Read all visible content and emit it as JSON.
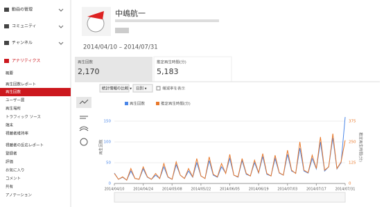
{
  "sidebar": {
    "sections": [
      "動画の管理",
      "コミュニティ",
      "チャンネル",
      "アナリティクス"
    ],
    "items": [
      "概要",
      "再生回数レポート",
      "再生回数",
      "ユーザー層",
      "再生場所",
      "トラフィック ソース",
      "端末",
      "視聴者維持率",
      "視聴者の反応レポート",
      "登録者",
      "評価",
      "お気に入り",
      "コメント",
      "共有",
      "アノテーション"
    ]
  },
  "header": {
    "channel_name": "中嶋航一",
    "date_range": "2014/04/10 – 2014/07/31"
  },
  "stats": [
    {
      "label": "再生回数",
      "value": "2,170"
    },
    {
      "label": "推定再生時間(分)",
      "value": "5,183"
    }
  ],
  "toolbar": {
    "compare": "統計情報の比較 ▾",
    "period": "日別 ▾",
    "show_change": "増減率を表示"
  },
  "chart_data": {
    "type": "line",
    "categories": [
      "2014/04/10",
      null,
      null,
      null,
      null,
      null,
      null,
      "2014/04/24",
      null,
      null,
      null,
      null,
      null,
      null,
      "2014/05/08",
      null,
      null,
      null,
      null,
      null,
      null,
      "2014/05/22",
      null,
      null,
      null,
      null,
      null,
      null,
      "2014/06/05",
      null,
      null,
      null,
      null,
      null,
      null,
      "2014/06/19",
      null,
      null,
      null,
      null,
      null,
      null,
      "2014/07/03",
      null,
      null,
      null,
      null,
      null,
      null,
      "2014/07/17",
      null,
      null,
      null,
      null,
      null,
      null,
      "2014/07/31"
    ],
    "series": [
      {
        "name": "再生回数",
        "color": "#4a86e8",
        "values": [
          25,
          10,
          15,
          8,
          30,
          12,
          10,
          35,
          15,
          10,
          20,
          12,
          40,
          15,
          10,
          45,
          20,
          12,
          30,
          15,
          50,
          18,
          12,
          55,
          20,
          15,
          40,
          25,
          60,
          20,
          15,
          55,
          22,
          18,
          50,
          25,
          65,
          22,
          18,
          60,
          25,
          20,
          70,
          30,
          25,
          85,
          30,
          25,
          60,
          35,
          100,
          30,
          40,
          110,
          35,
          50,
          160
        ]
      },
      {
        "name": "推定再生時間(分)",
        "color": "#e8782a",
        "axis": "y2",
        "values": [
          60,
          25,
          40,
          20,
          90,
          30,
          25,
          100,
          40,
          25,
          60,
          30,
          120,
          40,
          25,
          130,
          50,
          30,
          90,
          40,
          150,
          45,
          30,
          160,
          55,
          40,
          120,
          60,
          175,
          50,
          40,
          150,
          60,
          45,
          140,
          65,
          180,
          60,
          45,
          170,
          65,
          50,
          200,
          80,
          60,
          250,
          80,
          65,
          170,
          90,
          280,
          80,
          100,
          300,
          90,
          130,
          260
        ]
      }
    ],
    "ylim": [
      0,
      175
    ],
    "yticks": [
      0,
      50,
      100,
      150
    ],
    "y2lim": [
      0,
      437.5
    ],
    "y2ticks": [
      0,
      125,
      250,
      375
    ],
    "ylabel": "再生回数",
    "y2label": "推定再生時間(分)",
    "grid": true
  }
}
